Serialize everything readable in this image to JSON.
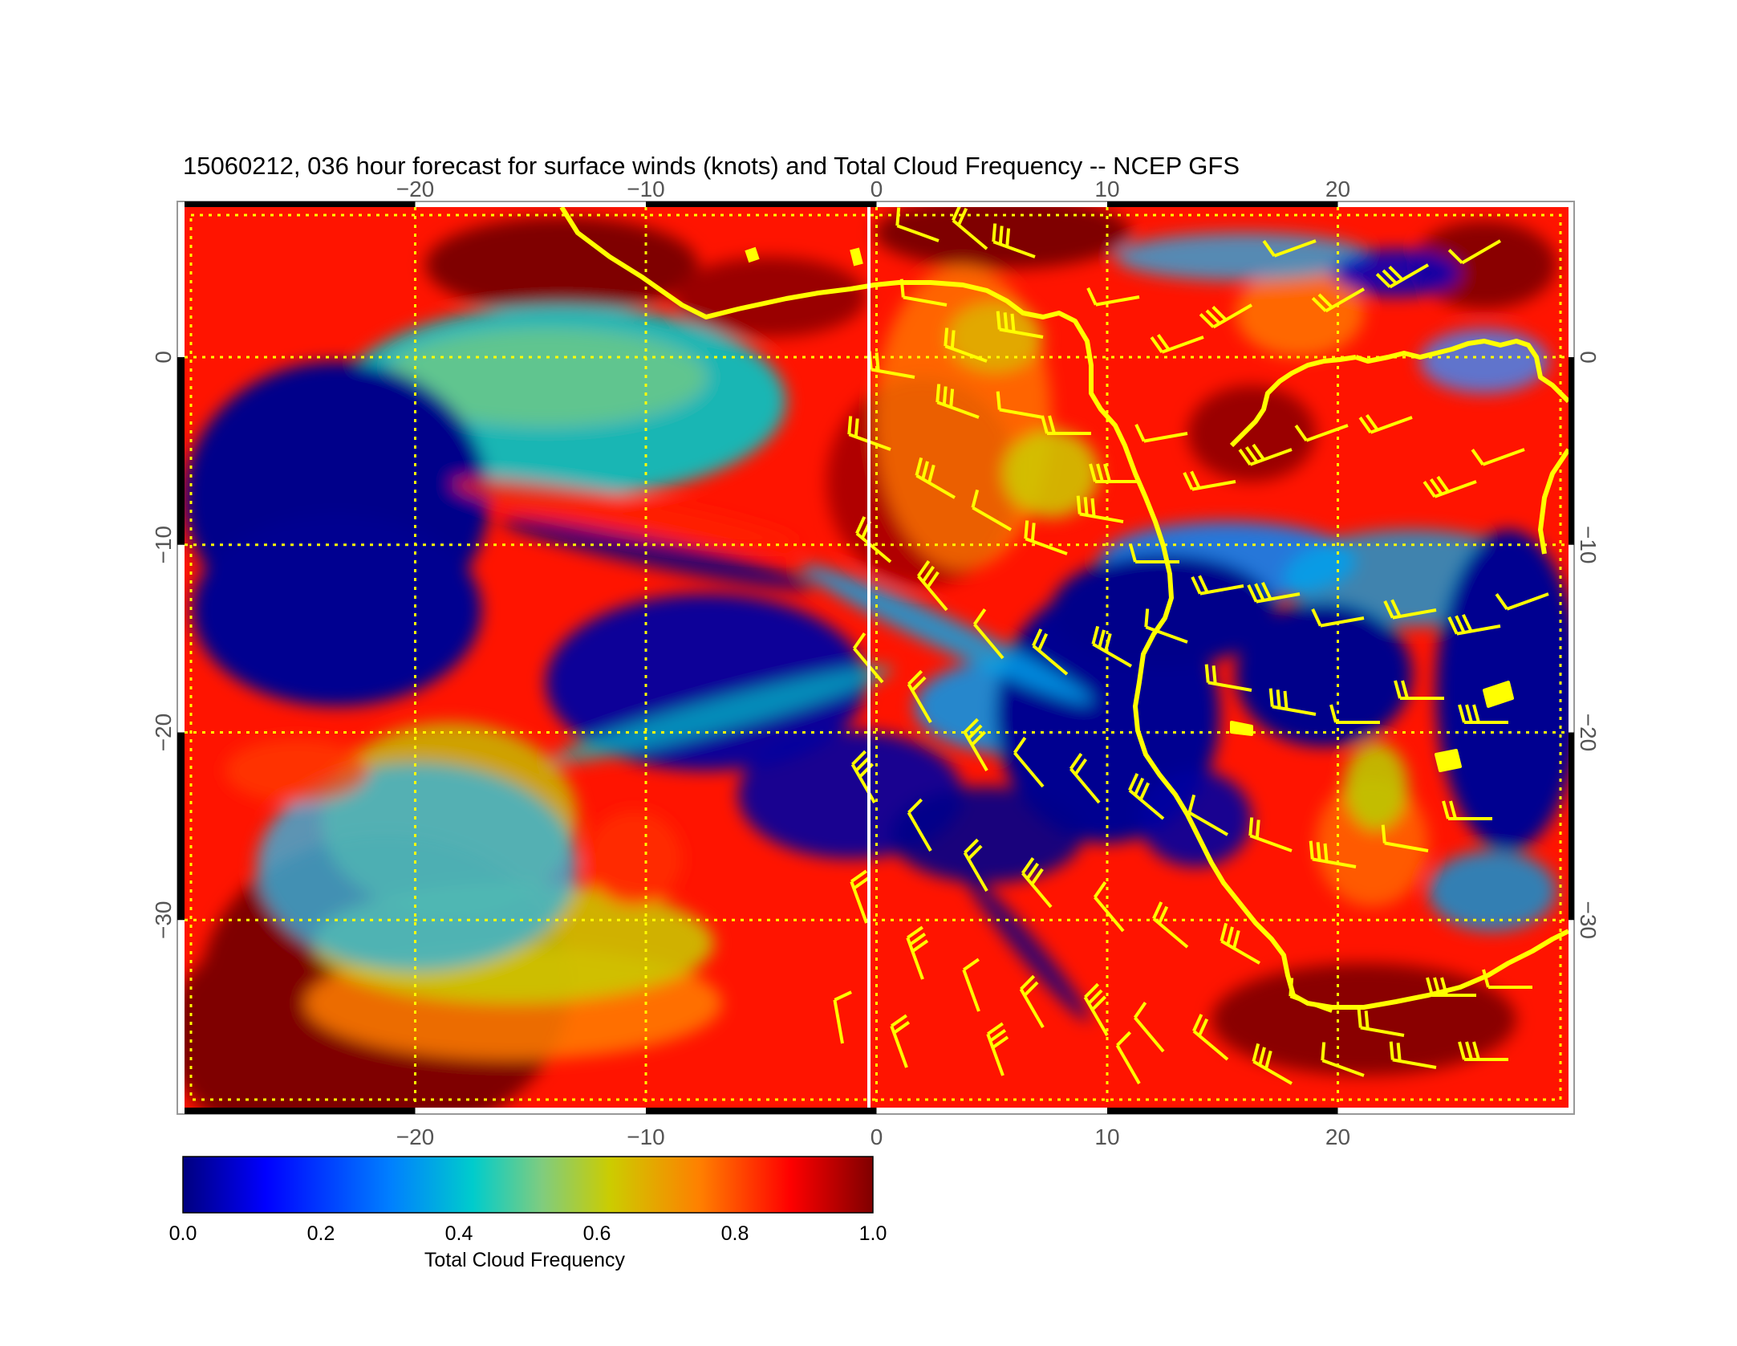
{
  "title": "15060212, 036 hour forecast for surface winds (knots) and Total Cloud Frequency -- NCEP GFS",
  "map": {
    "lon_range": [
      -30,
      30
    ],
    "lat_range": [
      -40,
      8
    ],
    "lon_grid": [
      -20,
      -10,
      0,
      10,
      20
    ],
    "lat_grid": [
      0,
      -10,
      -20,
      -30
    ],
    "lon_tick_labels": [
      "−20",
      "−10",
      "0",
      "10",
      "20"
    ],
    "lat_tick_labels": [
      "0",
      "−10",
      "−20",
      "−30"
    ],
    "grid_color": "#ffff00",
    "grid_style": "dotted",
    "coastline_color": "#ffff00",
    "barb_color": "#ffff00",
    "meridian_highlight_color": "#ffffff",
    "field": "Total Cloud Frequency",
    "vectors": "surface winds (knots)"
  },
  "colorbar": {
    "label": "Total Cloud Frequency",
    "min": 0.0,
    "max": 1.0,
    "tick_values": [
      0.0,
      0.2,
      0.4,
      0.6,
      0.8,
      1.0
    ],
    "tick_labels": [
      "0.0",
      "0.2",
      "0.4",
      "0.6",
      "0.8",
      "1.0"
    ],
    "colormap": "jet",
    "colors": [
      "#00007f",
      "#0000ff",
      "#007fff",
      "#00cccc",
      "#7fcc7f",
      "#cccc00",
      "#ff7f00",
      "#ff0000",
      "#7f0000"
    ]
  }
}
